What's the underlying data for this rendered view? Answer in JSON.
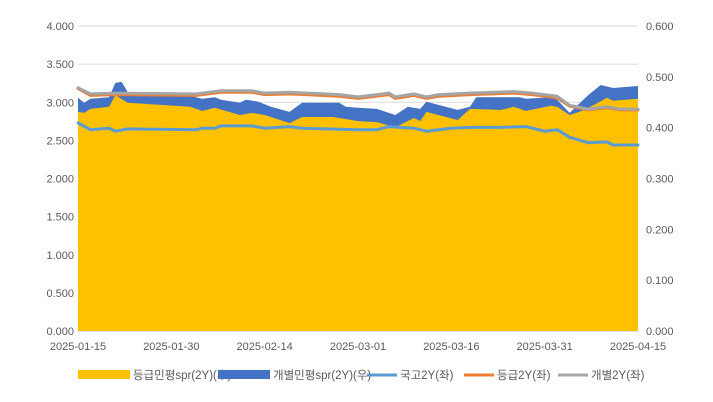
{
  "chart_data": {
    "type": "area+line",
    "x_start": "2025-01-15",
    "x_end": "2025-04-15",
    "x_ticks": [
      "2025-01-15",
      "2025-01-30",
      "2025-02-14",
      "2025-03-01",
      "2025-03-16",
      "2025-03-31",
      "2025-04-15"
    ],
    "y_left": {
      "range": [
        0,
        4
      ],
      "ticks": [
        "0.000",
        "0.500",
        "1.000",
        "1.500",
        "2.000",
        "2.500",
        "3.000",
        "3.500",
        "4.000"
      ]
    },
    "y_right": {
      "range": [
        0,
        0.6
      ],
      "ticks": [
        "0.000",
        "0.100",
        "0.200",
        "0.300",
        "0.400",
        "0.500",
        "0.600"
      ]
    },
    "grid": true,
    "legend_position": "bottom",
    "series": [
      {
        "name": "개별민평spr(2Y)(우)",
        "kind": "area",
        "axis": "right",
        "color": "#4472C4",
        "points": [
          [
            "2025-01-15",
            0.459
          ],
          [
            "2025-01-16",
            0.449
          ],
          [
            "2025-01-17",
            0.457
          ],
          [
            "2025-01-20",
            0.46
          ],
          [
            "2025-01-21",
            0.488
          ],
          [
            "2025-01-22",
            0.49
          ],
          [
            "2025-01-23",
            0.47
          ],
          [
            "2025-01-31",
            0.468
          ],
          [
            "2025-02-04",
            0.457
          ],
          [
            "2025-02-06",
            0.46
          ],
          [
            "2025-02-07",
            0.455
          ],
          [
            "2025-02-10",
            0.449
          ],
          [
            "2025-02-11",
            0.455
          ],
          [
            "2025-02-13",
            0.451
          ],
          [
            "2025-02-15",
            0.441
          ],
          [
            "2025-02-18",
            0.431
          ],
          [
            "2025-02-20",
            0.449
          ],
          [
            "2025-02-26",
            0.449
          ],
          [
            "2025-02-27",
            0.441
          ],
          [
            "2025-03-01",
            0.439
          ],
          [
            "2025-03-04",
            0.437
          ],
          [
            "2025-03-07",
            0.425
          ],
          [
            "2025-03-09",
            0.441
          ],
          [
            "2025-03-11",
            0.437
          ],
          [
            "2025-03-12",
            0.451
          ],
          [
            "2025-03-17",
            0.435
          ],
          [
            "2025-03-19",
            0.441
          ],
          [
            "2025-03-20",
            0.46
          ],
          [
            "2025-03-24",
            0.46
          ],
          [
            "2025-03-27",
            0.46
          ],
          [
            "2025-03-28",
            0.457
          ],
          [
            "2025-04-01",
            0.46
          ],
          [
            "2025-04-02",
            0.455
          ],
          [
            "2025-04-04",
            0.429
          ],
          [
            "2025-04-07",
            0.464
          ],
          [
            "2025-04-09",
            0.484
          ],
          [
            "2025-04-11",
            0.478
          ],
          [
            "2025-04-15",
            0.482
          ]
        ]
      },
      {
        "name": "등급민평spr(2Y)(우)",
        "kind": "area",
        "axis": "right",
        "color": "#FFC000",
        "points": [
          [
            "2025-01-15",
            0.431
          ],
          [
            "2025-01-16",
            0.429
          ],
          [
            "2025-01-17",
            0.437
          ],
          [
            "2025-01-20",
            0.441
          ],
          [
            "2025-01-21",
            0.464
          ],
          [
            "2025-01-23",
            0.449
          ],
          [
            "2025-02-02",
            0.441
          ],
          [
            "2025-02-04",
            0.433
          ],
          [
            "2025-02-06",
            0.439
          ],
          [
            "2025-02-10",
            0.425
          ],
          [
            "2025-02-12",
            0.429
          ],
          [
            "2025-02-14",
            0.425
          ],
          [
            "2025-02-18",
            0.409
          ],
          [
            "2025-02-20",
            0.421
          ],
          [
            "2025-02-25",
            0.421
          ],
          [
            "2025-02-28",
            0.415
          ],
          [
            "2025-03-01",
            0.413
          ],
          [
            "2025-03-04",
            0.411
          ],
          [
            "2025-03-07",
            0.401
          ],
          [
            "2025-03-10",
            0.419
          ],
          [
            "2025-03-11",
            0.413
          ],
          [
            "2025-03-12",
            0.431
          ],
          [
            "2025-03-17",
            0.415
          ],
          [
            "2025-03-19",
            0.437
          ],
          [
            "2025-03-24",
            0.435
          ],
          [
            "2025-03-26",
            0.441
          ],
          [
            "2025-03-28",
            0.433
          ],
          [
            "2025-04-01",
            0.443
          ],
          [
            "2025-04-02",
            0.441
          ],
          [
            "2025-04-04",
            0.425
          ],
          [
            "2025-04-06",
            0.433
          ],
          [
            "2025-04-08",
            0.445
          ],
          [
            "2025-04-10",
            0.459
          ],
          [
            "2025-04-11",
            0.453
          ],
          [
            "2025-04-15",
            0.457
          ]
        ]
      },
      {
        "name": "국고2Y(좌)",
        "kind": "line",
        "axis": "left",
        "color": "#5B9BD5",
        "points": [
          [
            "2025-01-15",
            2.73
          ],
          [
            "2025-01-17",
            2.64
          ],
          [
            "2025-01-20",
            2.66
          ],
          [
            "2025-01-21",
            2.62
          ],
          [
            "2025-01-23",
            2.65
          ],
          [
            "2025-02-03",
            2.64
          ],
          [
            "2025-02-04",
            2.66
          ],
          [
            "2025-02-06",
            2.66
          ],
          [
            "2025-02-07",
            2.69
          ],
          [
            "2025-02-12",
            2.69
          ],
          [
            "2025-02-14",
            2.66
          ],
          [
            "2025-02-18",
            2.68
          ],
          [
            "2025-02-20",
            2.66
          ],
          [
            "2025-03-01",
            2.64
          ],
          [
            "2025-03-04",
            2.64
          ],
          [
            "2025-03-06",
            2.68
          ],
          [
            "2025-03-10",
            2.66
          ],
          [
            "2025-03-12",
            2.62
          ],
          [
            "2025-03-16",
            2.66
          ],
          [
            "2025-03-19",
            2.67
          ],
          [
            "2025-03-24",
            2.67
          ],
          [
            "2025-03-28",
            2.68
          ],
          [
            "2025-03-31",
            2.62
          ],
          [
            "2025-04-02",
            2.64
          ],
          [
            "2025-04-04",
            2.54
          ],
          [
            "2025-04-07",
            2.47
          ],
          [
            "2025-04-10",
            2.48
          ],
          [
            "2025-04-11",
            2.44
          ],
          [
            "2025-04-15",
            2.44
          ]
        ]
      },
      {
        "name": "등급2Y(좌)",
        "kind": "line",
        "axis": "left",
        "color": "#ED7D31",
        "points": [
          [
            "2025-01-15",
            3.18
          ],
          [
            "2025-01-17",
            3.09
          ],
          [
            "2025-01-21",
            3.1
          ],
          [
            "2025-02-03",
            3.09
          ],
          [
            "2025-02-07",
            3.13
          ],
          [
            "2025-02-12",
            3.13
          ],
          [
            "2025-02-14",
            3.1
          ],
          [
            "2025-02-18",
            3.11
          ],
          [
            "2025-02-26",
            3.08
          ],
          [
            "2025-03-01",
            3.05
          ],
          [
            "2025-03-06",
            3.1
          ],
          [
            "2025-03-07",
            3.05
          ],
          [
            "2025-03-10",
            3.09
          ],
          [
            "2025-03-12",
            3.05
          ],
          [
            "2025-03-14",
            3.08
          ],
          [
            "2025-03-19",
            3.1
          ],
          [
            "2025-03-26",
            3.12
          ],
          [
            "2025-03-29",
            3.1
          ],
          [
            "2025-04-02",
            3.06
          ],
          [
            "2025-04-04",
            2.95
          ],
          [
            "2025-04-07",
            2.9
          ],
          [
            "2025-04-10",
            2.93
          ],
          [
            "2025-04-12",
            2.9
          ],
          [
            "2025-04-15",
            2.9
          ]
        ]
      },
      {
        "name": "개별2Y(좌)",
        "kind": "line",
        "axis": "left",
        "color": "#A5A5A5",
        "points": [
          [
            "2025-01-15",
            3.19
          ],
          [
            "2025-01-17",
            3.11
          ],
          [
            "2025-01-21",
            3.12
          ],
          [
            "2025-02-03",
            3.11
          ],
          [
            "2025-02-07",
            3.15
          ],
          [
            "2025-02-12",
            3.15
          ],
          [
            "2025-02-14",
            3.12
          ],
          [
            "2025-02-18",
            3.13
          ],
          [
            "2025-02-26",
            3.1
          ],
          [
            "2025-03-01",
            3.07
          ],
          [
            "2025-03-06",
            3.12
          ],
          [
            "2025-03-07",
            3.07
          ],
          [
            "2025-03-10",
            3.11
          ],
          [
            "2025-03-12",
            3.07
          ],
          [
            "2025-03-14",
            3.1
          ],
          [
            "2025-03-19",
            3.12
          ],
          [
            "2025-03-26",
            3.14
          ],
          [
            "2025-03-29",
            3.12
          ],
          [
            "2025-04-02",
            3.08
          ],
          [
            "2025-04-04",
            2.96
          ],
          [
            "2025-04-07",
            2.91
          ],
          [
            "2025-04-10",
            2.94
          ],
          [
            "2025-04-12",
            2.91
          ],
          [
            "2025-04-15",
            2.91
          ]
        ]
      }
    ],
    "legend_order": [
      1,
      0,
      2,
      3,
      4
    ]
  }
}
